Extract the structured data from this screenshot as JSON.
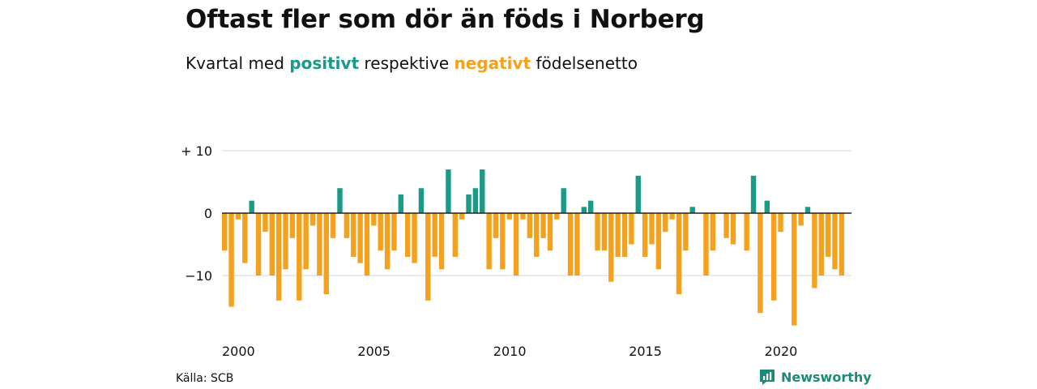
{
  "header": {
    "title": "Oftast fler som dör än föds i Norberg",
    "subtitle_prefix": "Kvartal med",
    "subtitle_positive": "positivt",
    "subtitle_middle": "respektive",
    "subtitle_negative": "negativt",
    "subtitle_suffix": "födelsenetto"
  },
  "footer": {
    "source": "Källa: SCB",
    "brand": "Newsworthy"
  },
  "colors": {
    "positive": "#1a9b88",
    "negative": "#f4a21d",
    "grid": "#dddddd",
    "zero_line": "#222222"
  },
  "chart_data": {
    "type": "bar",
    "title": "Oftast fler som dör än föds i Norberg",
    "subtitle": "Kvartal med positivt respektive negativt födelsenetto",
    "start_year": 2000,
    "periods_per_year": 4,
    "x_tick_labels": [
      "2000",
      "2005",
      "2010",
      "2015",
      "2020"
    ],
    "y_ticks": [
      10,
      0,
      -10
    ],
    "y_tick_labels": [
      "+ 10",
      "0",
      "−10"
    ],
    "ylim": [
      -18,
      10
    ],
    "grid": true,
    "values": [
      -6,
      -15,
      -1,
      -8,
      2,
      -10,
      -3,
      -10,
      -14,
      -9,
      -4,
      -14,
      -9,
      -2,
      -10,
      -13,
      -4,
      4,
      -4,
      -7,
      -8,
      -10,
      -2,
      -6,
      -9,
      -6,
      3,
      -7,
      -8,
      4,
      -14,
      -7,
      -9,
      7,
      -7,
      -1,
      3,
      4,
      7,
      -9,
      -4,
      -9,
      -1,
      -10,
      -1,
      -4,
      -7,
      -4,
      -6,
      -1,
      4,
      -10,
      -10,
      1,
      2,
      -6,
      -6,
      -11,
      -7,
      -7,
      -5,
      6,
      -7,
      -5,
      -9,
      -3,
      -1,
      -13,
      -6,
      1,
      0,
      -10,
      -6,
      0,
      -4,
      -5,
      0,
      -6,
      6,
      -16,
      2,
      -14,
      -3,
      0,
      -18,
      -2,
      1,
      -12,
      -10,
      -7,
      -9,
      -10
    ]
  }
}
